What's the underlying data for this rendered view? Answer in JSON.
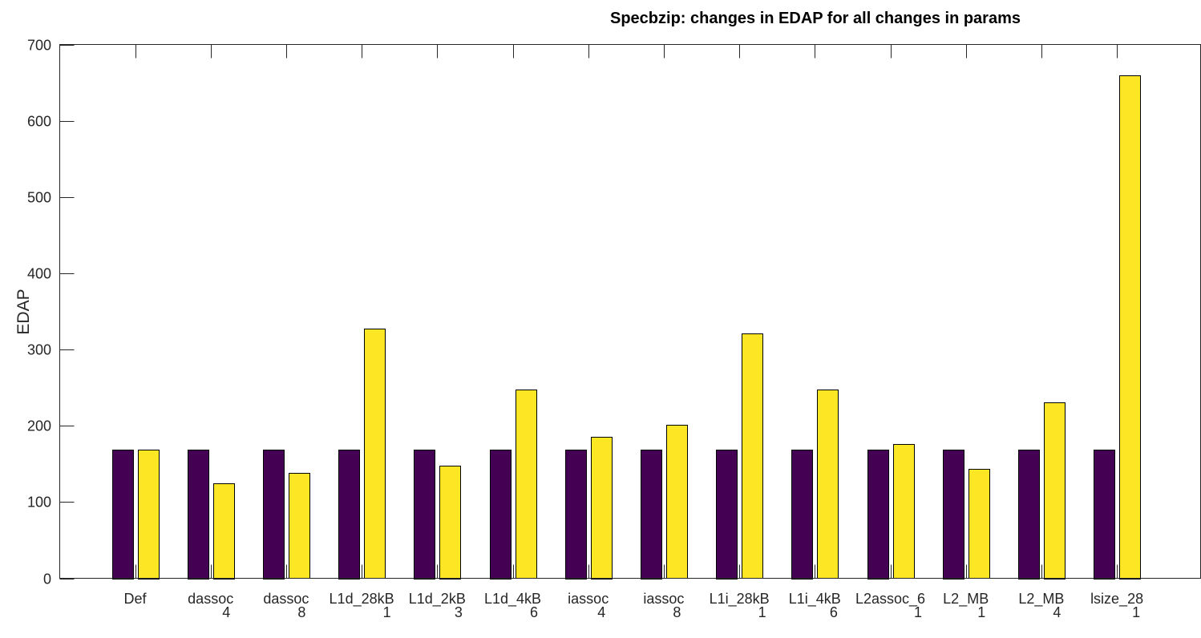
{
  "chart_data": {
    "type": "bar",
    "title": "Specbzip: changes in EDAP for all changes in params",
    "xlabel": "",
    "ylabel": "EDAP",
    "ylim": [
      0,
      700
    ],
    "yticks": [
      "0",
      "100",
      "200",
      "300",
      "400",
      "500",
      "600",
      "700"
    ],
    "grid": false,
    "categories": [
      {
        "main": "Def",
        "sub": ""
      },
      {
        "main": "dassoc",
        "sub": "4"
      },
      {
        "main": "dassoc",
        "sub": "8"
      },
      {
        "main": "L1d_28kB",
        "sub": "1"
      },
      {
        "main": "L1d_2kB",
        "sub": "3"
      },
      {
        "main": "L1d_4kB",
        "sub": "6"
      },
      {
        "main": "iassoc",
        "sub": "4"
      },
      {
        "main": "iassoc",
        "sub": "8"
      },
      {
        "main": "L1i_28kB",
        "sub": "1"
      },
      {
        "main": "L1i_4kB",
        "sub": "6"
      },
      {
        "main": "L2assoc_6",
        "sub": "1"
      },
      {
        "main": "L2_MB",
        "sub": "1"
      },
      {
        "main": "L2_MB",
        "sub": "4"
      },
      {
        "main": "lsize_28",
        "sub": "1"
      }
    ],
    "series": [
      {
        "color": "#440154",
        "values": [
          169,
          169,
          169,
          169,
          169,
          169,
          169,
          169,
          169,
          169,
          169,
          169,
          169,
          169
        ]
      },
      {
        "color": "#fde725",
        "values": [
          169,
          125,
          138,
          327,
          148,
          247,
          186,
          201,
          321,
          247,
          176,
          143,
          231,
          660
        ]
      }
    ]
  }
}
